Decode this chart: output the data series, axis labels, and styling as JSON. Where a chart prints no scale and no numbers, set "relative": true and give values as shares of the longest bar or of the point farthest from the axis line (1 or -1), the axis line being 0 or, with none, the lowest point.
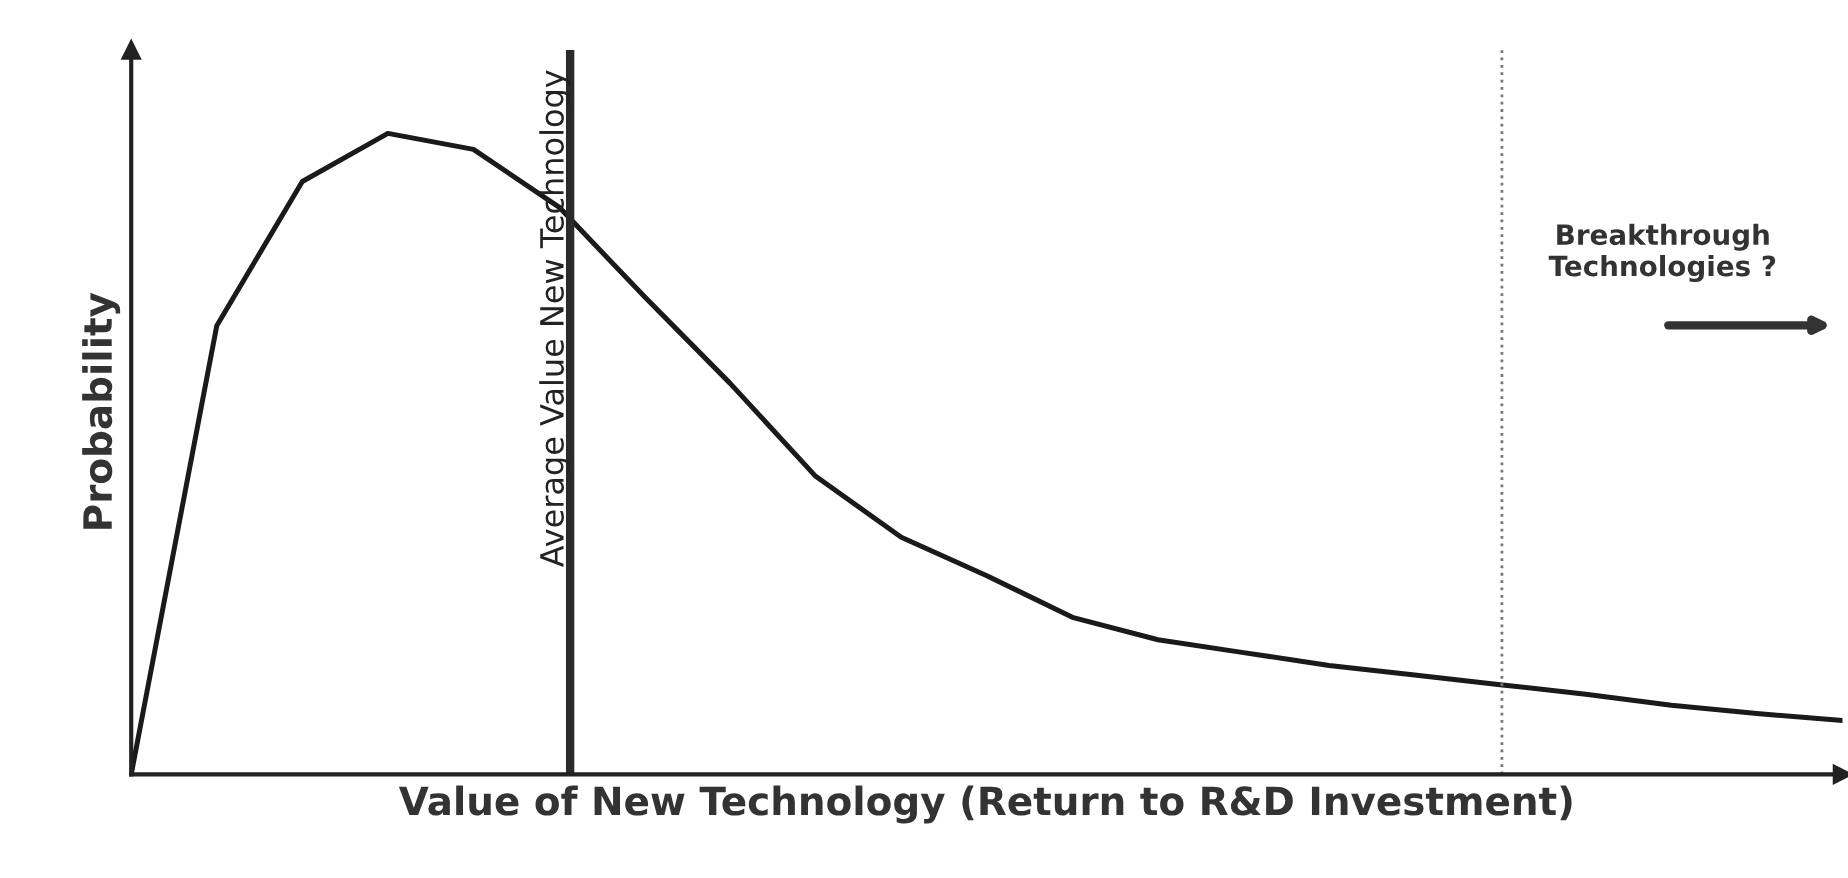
{
  "chart_data": {
    "type": "line",
    "relative": true,
    "xlabel": "Value of New Technology (Return to R&D Investment)",
    "ylabel": "Probability",
    "categories": [
      null,
      null,
      null,
      null,
      null,
      null,
      null,
      null,
      null,
      null,
      null,
      null,
      null,
      null,
      null,
      null,
      null,
      null,
      null,
      null,
      null
    ],
    "series": [
      {
        "color": "#1a1a1a",
        "values": [
          0,
          0.7,
          0.925,
          1,
          0.975,
          0.885,
          0.745,
          0.61,
          0.465,
          0.37,
          0.31,
          0.245,
          0.21,
          0.19,
          0.17,
          0.155,
          0.14,
          0.125,
          0.108,
          0.095,
          0.084
        ]
      }
    ],
    "annotations": [
      "Breakthrough Technologies ?",
      "Average Value New Technology"
    ],
    "legend": false,
    "tick_labels": false,
    "marker": "none",
    "line_style": "solid"
  }
}
